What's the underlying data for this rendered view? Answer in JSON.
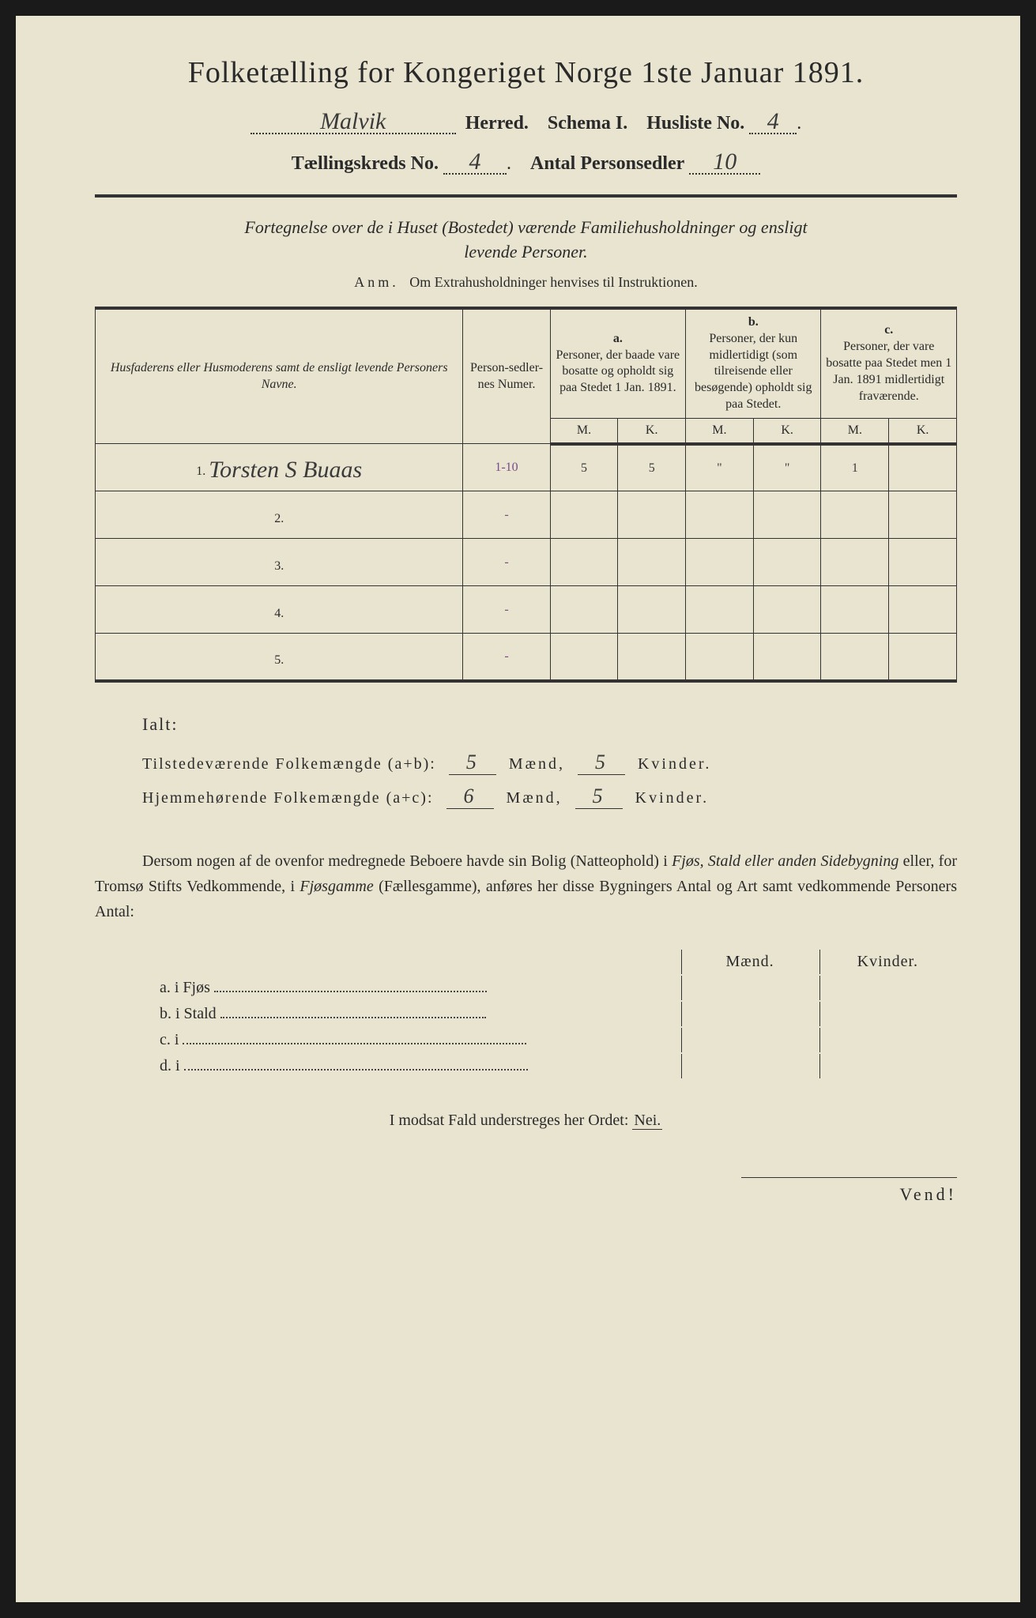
{
  "title": "Folketælling for Kongeriget Norge 1ste Januar 1891.",
  "header": {
    "herred_value": "Malvik",
    "herred_label": "Herred.",
    "schema_label": "Schema I.",
    "husliste_label": "Husliste No.",
    "husliste_value": "4",
    "kreds_label": "Tællingskreds No.",
    "kreds_value": "4",
    "antal_label": "Antal Personsedler",
    "antal_value": "10"
  },
  "subtitle1": "Fortegnelse over de i Huset (Bostedet) værende Familiehusholdninger og ensligt",
  "subtitle2": "levende Personer.",
  "anm_label": "Anm.",
  "anm_text": "Om Extrahusholdninger henvises til Instruktionen.",
  "table": {
    "col1_header": "Husfaderens eller Husmoderens samt de ensligt levende Personers Navne.",
    "col2_header": "Person-sedler-nes Numer.",
    "col_a_label": "a.",
    "col_a_text": "Personer, der baade vare bosatte og opholdt sig paa Stedet 1 Jan. 1891.",
    "col_b_label": "b.",
    "col_b_text": "Personer, der kun midlertidigt (som tilreisende eller besøgende) opholdt sig paa Stedet.",
    "col_c_label": "c.",
    "col_c_text": "Personer, der vare bosatte paa Stedet men 1 Jan. 1891 midlertidigt fraværende.",
    "m_label": "M.",
    "k_label": "K.",
    "rows": [
      {
        "num": "1.",
        "name": "Torsten S Buaas",
        "numer": "1-10",
        "a_m": "5",
        "a_k": "5",
        "b_m": "\"",
        "b_k": "\"",
        "c_m": "1",
        "c_k": ""
      },
      {
        "num": "2.",
        "name": "",
        "numer": "-",
        "a_m": "",
        "a_k": "",
        "b_m": "",
        "b_k": "",
        "c_m": "",
        "c_k": ""
      },
      {
        "num": "3.",
        "name": "",
        "numer": "-",
        "a_m": "",
        "a_k": "",
        "b_m": "",
        "b_k": "",
        "c_m": "",
        "c_k": ""
      },
      {
        "num": "4.",
        "name": "",
        "numer": "-",
        "a_m": "",
        "a_k": "",
        "b_m": "",
        "b_k": "",
        "c_m": "",
        "c_k": ""
      },
      {
        "num": "5.",
        "name": "",
        "numer": "-",
        "a_m": "",
        "a_k": "",
        "b_m": "",
        "b_k": "",
        "c_m": "",
        "c_k": ""
      }
    ]
  },
  "totals": {
    "ialt_label": "Ialt:",
    "tilstede_label": "Tilstedeværende Folkemængde (a+b):",
    "tilstede_m": "5",
    "tilstede_k": "5",
    "hjemme_label": "Hjemmehørende Folkemængde (a+c):",
    "hjemme_m": "6",
    "hjemme_k": "5",
    "maend_label": "Mænd,",
    "kvinder_label": "Kvinder."
  },
  "paragraph": {
    "text1": "Dersom nogen af de ovenfor medregnede Beboere havde sin Bolig (Natteophold) i ",
    "italic1": "Fjøs, Stald eller anden Sidebygning",
    "text2": " eller, for Tromsø Stifts Vedkommende, i ",
    "italic2": "Fjøsgamme",
    "text3": " (Fællesgamme), anføres her disse Bygningers Antal og Art samt vedkommende Personers Antal:"
  },
  "subtable": {
    "maend": "Mænd.",
    "kvinder": "Kvinder.",
    "rows": [
      {
        "label": "a.  i      Fjøs"
      },
      {
        "label": "b.  i      Stald"
      },
      {
        "label": "c.  i"
      },
      {
        "label": "d.  i"
      }
    ]
  },
  "nei_line": "I modsat Fald understreges her Ordet:",
  "nei_word": "Nei.",
  "vend": "Vend!"
}
